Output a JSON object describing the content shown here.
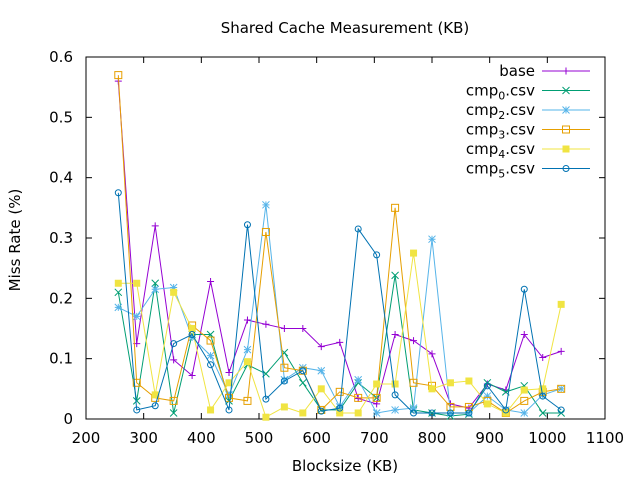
{
  "chart_data": {
    "type": "line",
    "title": "Shared Cache Measurement (KB)",
    "xlabel": "Blocksize (KB)",
    "ylabel": "Miss Rate (%)",
    "xlim": [
      200,
      1100
    ],
    "ylim": [
      0,
      0.6
    ],
    "xticks": [
      "200",
      "300",
      "400",
      "500",
      "600",
      "700",
      "800",
      "900",
      "1000",
      "1100"
    ],
    "yticks": [
      "0",
      "0.1",
      "0.2",
      "0.3",
      "0.4",
      "0.5",
      "0.6"
    ],
    "grid": false,
    "legend_position": "top-right",
    "series": [
      {
        "name": "base",
        "legend_base": "base",
        "legend_sub": "",
        "legend_suffix": "",
        "color": "#9400d3",
        "marker": "plus",
        "x": [
          256,
          288,
          320,
          352,
          384,
          416,
          448,
          480,
          512,
          544,
          576,
          608,
          640,
          672,
          704,
          736,
          768,
          800,
          832,
          864,
          896,
          928,
          960,
          992,
          1024
        ],
        "y": [
          0.56,
          0.125,
          0.32,
          0.098,
          0.072,
          0.228,
          0.077,
          0.164,
          0.157,
          0.15,
          0.15,
          0.12,
          0.127,
          0.034,
          0.025,
          0.14,
          0.13,
          0.108,
          0.025,
          0.018,
          0.058,
          0.048,
          0.14,
          0.102,
          0.112
        ]
      },
      {
        "name": "cmp0.csv",
        "legend_base": "cmp",
        "legend_sub": "0",
        "legend_suffix": ".csv",
        "color": "#009e73",
        "marker": "x",
        "x": [
          256,
          288,
          320,
          352,
          384,
          416,
          448,
          480,
          512,
          544,
          576,
          608,
          640,
          672,
          704,
          736,
          768,
          800,
          832,
          864,
          896,
          928,
          960,
          992,
          1024
        ],
        "y": [
          0.21,
          0.03,
          0.225,
          0.01,
          0.14,
          0.14,
          0.03,
          0.09,
          0.075,
          0.11,
          0.06,
          0.015,
          0.015,
          0.06,
          0.035,
          0.238,
          0.015,
          0.01,
          0.005,
          0.008,
          0.06,
          0.045,
          0.055,
          0.01,
          0.01
        ]
      },
      {
        "name": "cmp2.csv",
        "legend_base": "cmp",
        "legend_sub": "2",
        "legend_suffix": ".csv",
        "color": "#56b4e9",
        "marker": "star",
        "x": [
          256,
          288,
          320,
          352,
          384,
          416,
          448,
          480,
          512,
          544,
          576,
          608,
          640,
          672,
          704,
          736,
          768,
          800,
          832,
          864,
          896,
          928,
          960,
          992,
          1024
        ],
        "y": [
          0.185,
          0.17,
          0.215,
          0.218,
          0.135,
          0.105,
          0.04,
          0.115,
          0.355,
          0.065,
          0.085,
          0.08,
          0.02,
          0.065,
          0.01,
          0.015,
          0.018,
          0.298,
          0.01,
          0.01,
          0.038,
          0.015,
          0.01,
          0.04,
          0.05
        ]
      },
      {
        "name": "cmp3.csv",
        "legend_base": "cmp",
        "legend_sub": "3",
        "legend_suffix": ".csv",
        "color": "#e69f00",
        "marker": "square-open",
        "x": [
          256,
          288,
          320,
          352,
          384,
          416,
          448,
          480,
          512,
          544,
          576,
          608,
          640,
          672,
          704,
          736,
          768,
          800,
          832,
          864,
          896,
          928,
          960,
          992,
          1024
        ],
        "y": [
          0.57,
          0.06,
          0.035,
          0.03,
          0.155,
          0.13,
          0.035,
          0.03,
          0.31,
          0.085,
          0.08,
          0.015,
          0.045,
          0.035,
          0.035,
          0.35,
          0.06,
          0.055,
          0.02,
          0.02,
          0.03,
          0.01,
          0.03,
          0.045,
          0.05
        ]
      },
      {
        "name": "cmp4.csv",
        "legend_base": "cmp",
        "legend_sub": "4",
        "legend_suffix": ".csv",
        "color": "#f0e442",
        "marker": "square-filled",
        "x": [
          256,
          288,
          320,
          352,
          384,
          416,
          448,
          480,
          512,
          544,
          576,
          608,
          640,
          672,
          704,
          736,
          768,
          800,
          832,
          864,
          896,
          928,
          960,
          992,
          1024
        ],
        "y": [
          0.225,
          0.225,
          0.04,
          0.21,
          0.15,
          0.015,
          0.06,
          0.095,
          0.003,
          0.02,
          0.01,
          0.05,
          0.01,
          0.01,
          0.058,
          0.058,
          0.275,
          0.05,
          0.06,
          0.063,
          0.025,
          0.01,
          0.048,
          0.05,
          0.19
        ]
      },
      {
        "name": "cmp5.csv",
        "legend_base": "cmp",
        "legend_sub": "5",
        "legend_suffix": ".csv",
        "color": "#0072b2",
        "marker": "circle-open",
        "x": [
          256,
          288,
          320,
          352,
          384,
          416,
          448,
          480,
          512,
          544,
          576,
          608,
          640,
          672,
          704,
          736,
          768,
          800,
          832,
          864,
          896,
          928,
          960,
          992,
          1024
        ],
        "y": [
          0.375,
          0.015,
          0.022,
          0.125,
          0.14,
          0.09,
          0.015,
          0.322,
          0.033,
          0.063,
          0.08,
          0.013,
          0.018,
          0.315,
          0.272,
          0.04,
          0.01,
          0.01,
          0.01,
          0.01,
          0.055,
          0.015,
          0.215,
          0.038,
          0.015
        ]
      }
    ]
  }
}
